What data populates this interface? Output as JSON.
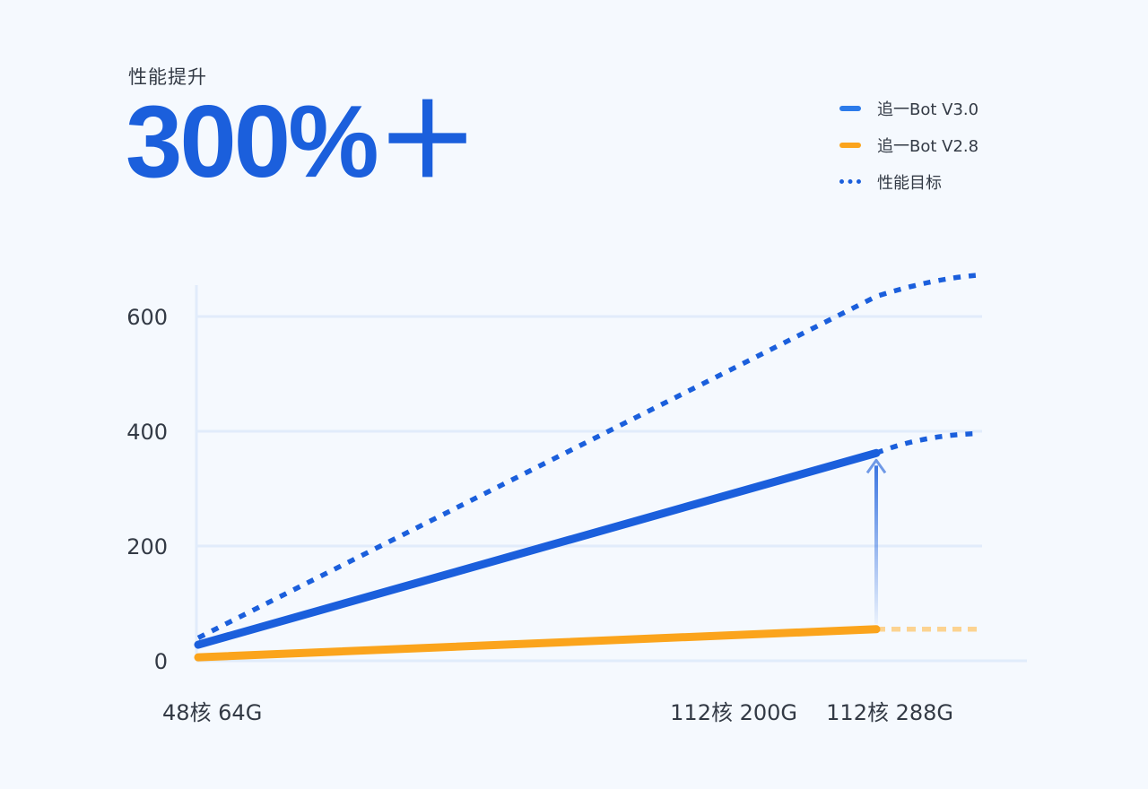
{
  "header": {
    "subtitle": "性能提升",
    "headline": "300%＋"
  },
  "colors": {
    "primary": "#1b5fdc",
    "secondary": "#fba41c",
    "legend_v30": "#2c7bea",
    "grid": "#e1ecfb",
    "text": "#333a45"
  },
  "legend": [
    {
      "label": "追一Bot V3.0",
      "style": "solid",
      "color": "#2c7bea"
    },
    {
      "label": "追一Bot V2.8",
      "style": "solid",
      "color": "#fba41c"
    },
    {
      "label": "性能目标",
      "style": "dotted",
      "color": "#1b5fdc"
    }
  ],
  "chart_data": {
    "type": "line",
    "x_tick_labels": [
      "48核 64G",
      "112核 200G",
      "112核 288G"
    ],
    "y_ticks": [
      0,
      200,
      400,
      600
    ],
    "ylim": [
      0,
      650
    ],
    "grid": true,
    "legend_position": "top-right",
    "series": [
      {
        "name": "追一Bot V3.0",
        "style": "solid",
        "color": "#1b5fdc",
        "points": [
          [
            "48核 64G",
            28
          ],
          [
            "112核 200G",
            362
          ]
        ]
      },
      {
        "name": "追一Bot V2.8",
        "style": "solid",
        "color": "#fba41c",
        "points": [
          [
            "48核 64G",
            6
          ],
          [
            "112核 200G",
            55
          ]
        ]
      },
      {
        "name": "性能目标",
        "style": "dotted",
        "color": "#1b5fdc",
        "points": [
          [
            "48核 64G",
            40
          ],
          [
            "112核 200G",
            635
          ],
          [
            "112核 288G",
            672
          ]
        ]
      },
      {
        "style": "dotted",
        "color": "#1b5fdc",
        "points": [
          [
            "112核 200G",
            362
          ],
          [
            "112核 288G",
            396
          ]
        ]
      },
      {
        "style": "dotted-faded",
        "color": "#fcd391",
        "points": [
          [
            "112核 200G",
            55
          ],
          [
            "112核 288G",
            55
          ]
        ]
      }
    ],
    "annotation": {
      "type": "arrow",
      "at": "112核 200G",
      "from_value": 55,
      "to_value": 362
    }
  }
}
